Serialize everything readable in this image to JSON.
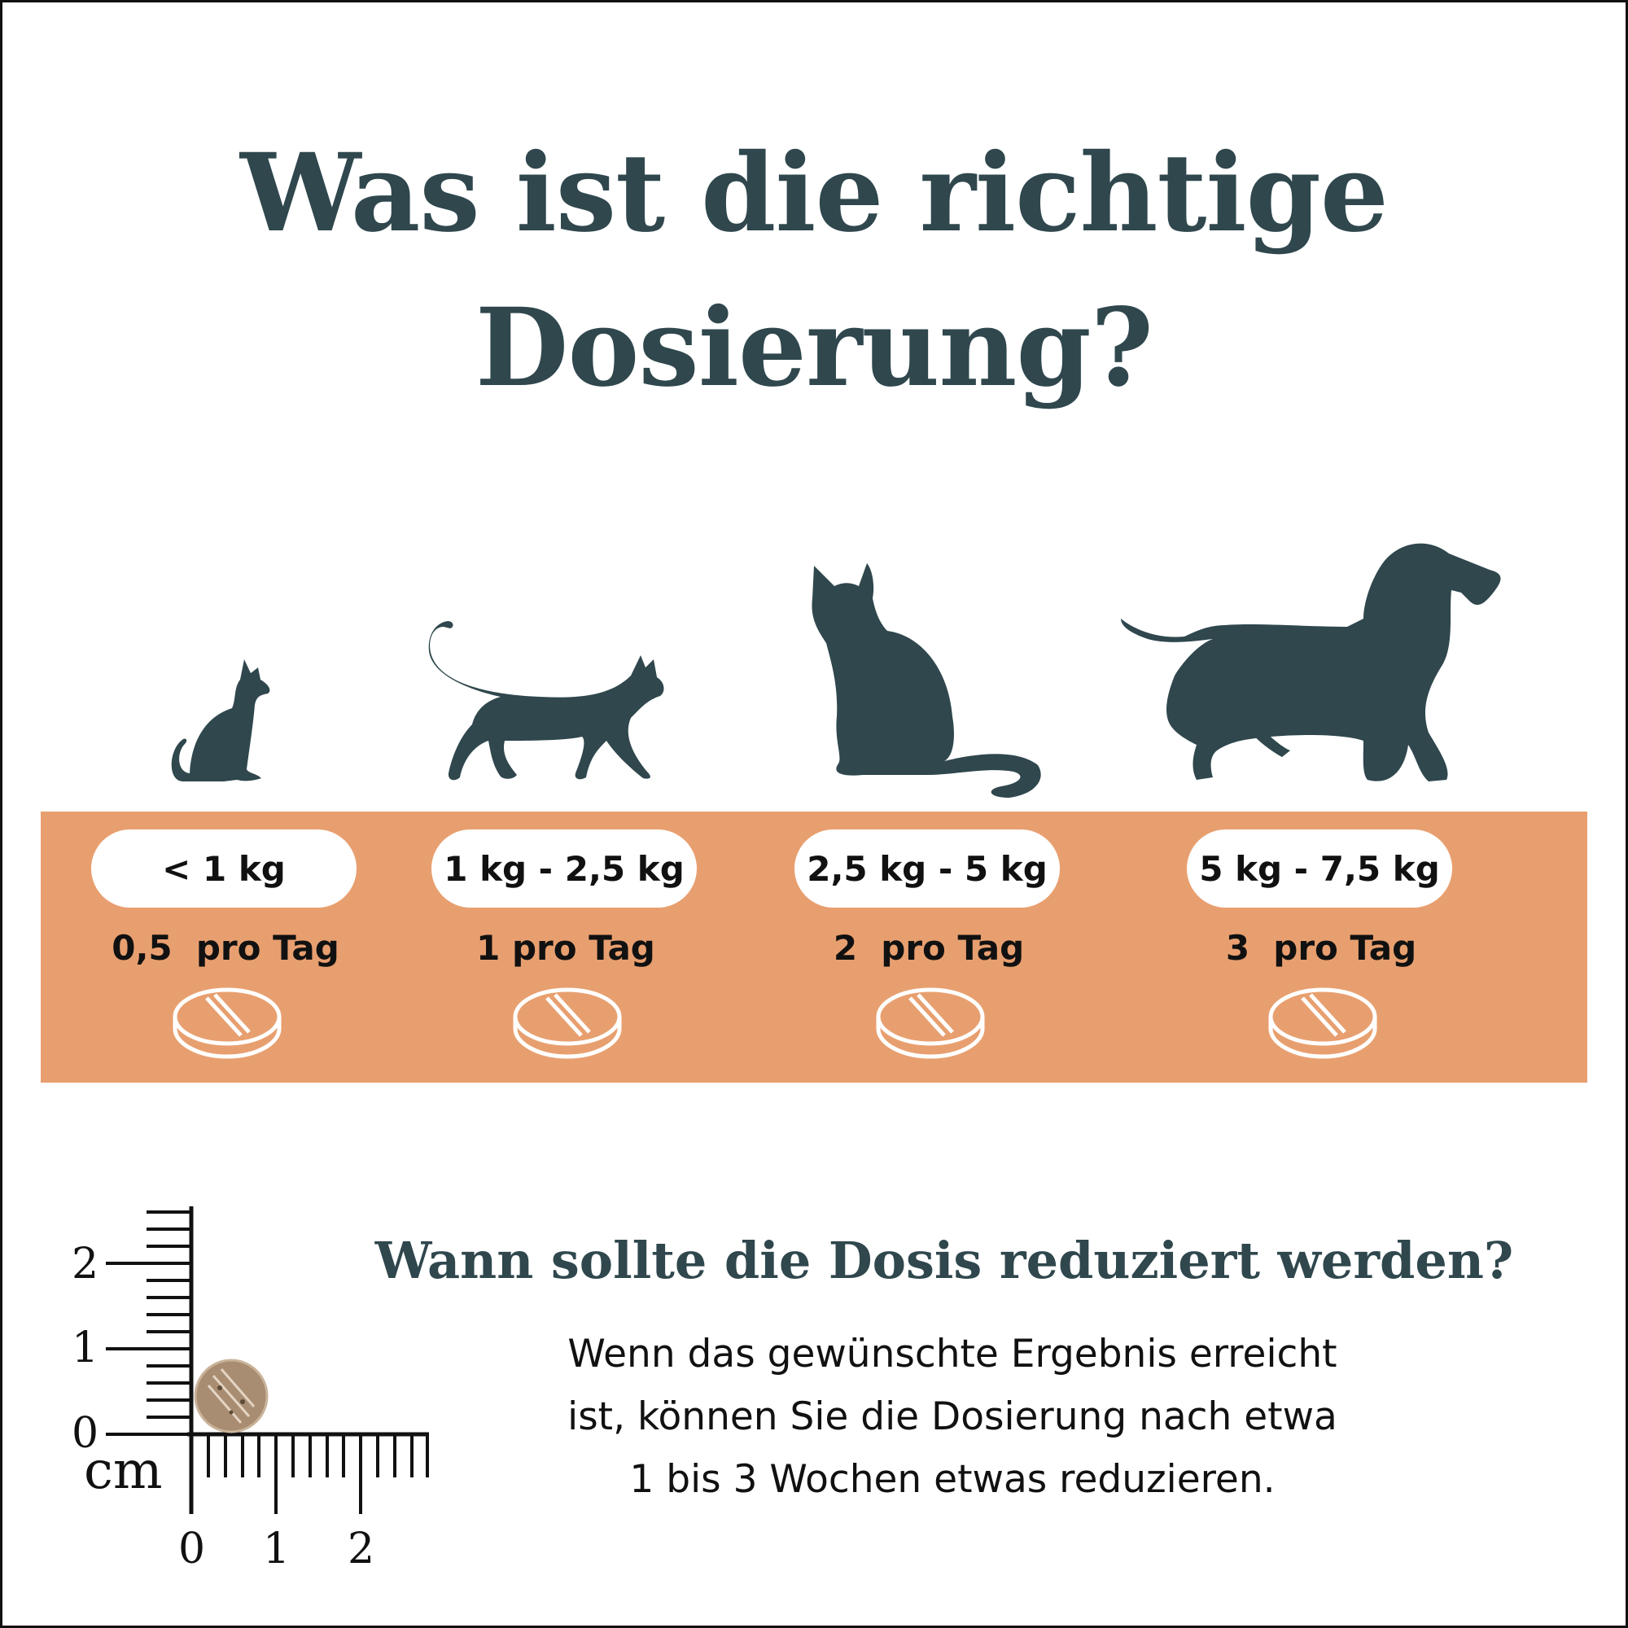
{
  "title": {
    "line1": "Was ist die richtige",
    "line2": "Dosierung?"
  },
  "dosage": [
    {
      "weight": "< 1 kg",
      "dose": "0,5  pro Tag",
      "animal_icon": "kitten-sitting-icon"
    },
    {
      "weight": "1 kg - 2,5 kg",
      "dose": "1 pro Tag",
      "animal_icon": "cat-walking-icon"
    },
    {
      "weight": "2,5 kg - 5 kg",
      "dose": "2  pro Tag",
      "animal_icon": "cat-sitting-icon"
    },
    {
      "weight": "5 kg - 7,5 kg",
      "dose": "3  pro Tag",
      "animal_icon": "dachshund-icon"
    }
  ],
  "reduce": {
    "heading": "Wann sollte die Dosis reduziert werden?",
    "lines": [
      "Wenn das gewünschte Ergebnis erreicht",
      "ist, können Sie die Dosierung nach etwa",
      "1 bis 3 Wochen etwas reduzieren."
    ]
  },
  "ruler": {
    "unit": "cm",
    "y_labels": [
      "2",
      "1",
      "0"
    ],
    "x_labels": [
      "0",
      "1",
      "2"
    ]
  },
  "colors": {
    "title": "#2f474d",
    "band": "#e89f6f",
    "pill": "#ffffff",
    "tablet_outline": "#ffffff"
  }
}
